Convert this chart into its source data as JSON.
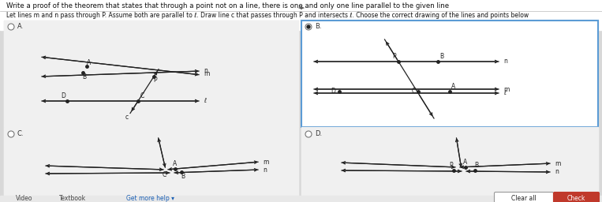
{
  "title": "Write a proof of the theorem that states that through a point not on a line, there is one and only one line parallel to the given line",
  "subtitle": "Let lines m and n pass through P. Assume both are parallel to ℓ. Draw line c that passes through P and intersects ℓ. Choose the correct drawing of the lines and points below",
  "bg_color": "#d8d8d8",
  "selected": "B",
  "button_clear": "Clear all",
  "button_check": "Check",
  "check_color": "#c0392b"
}
